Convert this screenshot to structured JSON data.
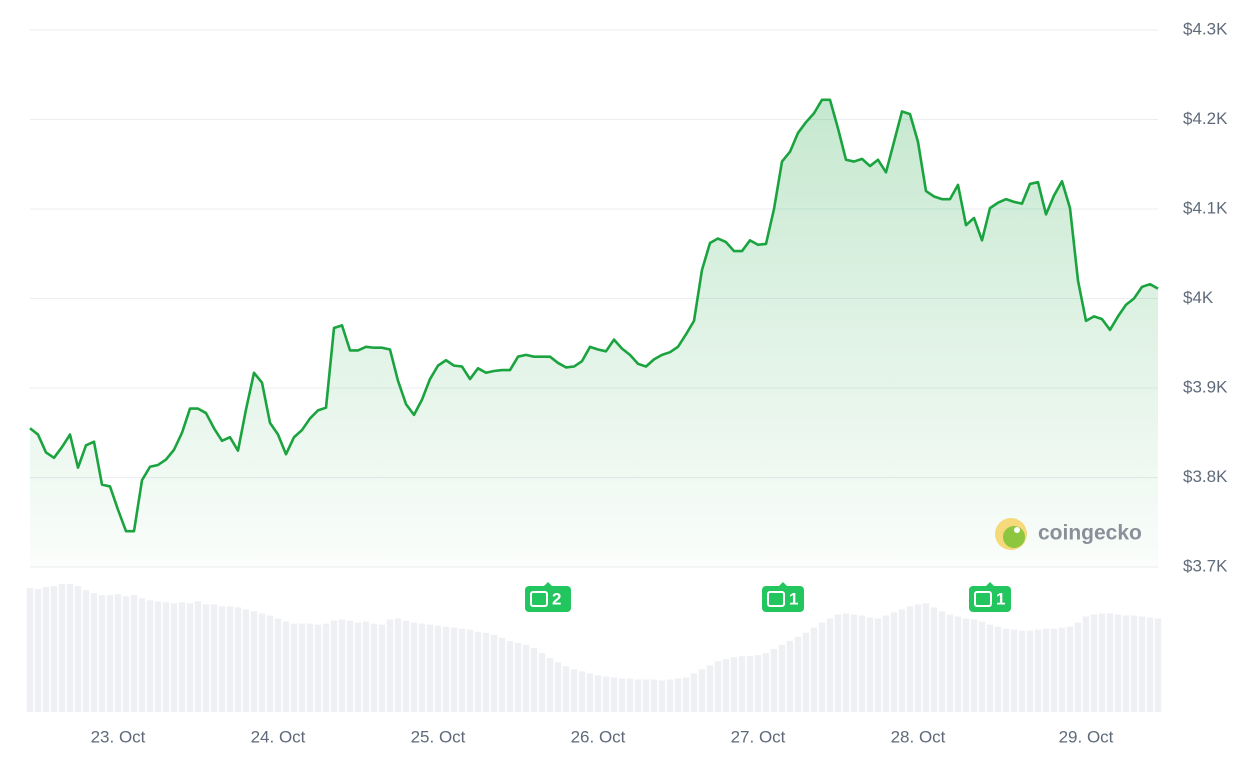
{
  "chart_data": {
    "type": "line",
    "categories": [
      null,
      null,
      null,
      null,
      null,
      null,
      null,
      null,
      null,
      null,
      null,
      "23. Oct",
      null,
      null,
      null,
      null,
      null,
      null,
      null,
      null,
      null,
      null,
      null,
      null,
      null,
      null,
      null,
      null,
      null,
      null,
      null,
      "24. Oct",
      null,
      null,
      null,
      null,
      null,
      null,
      null,
      null,
      null,
      null,
      null,
      null,
      null,
      null,
      null,
      null,
      null,
      null,
      null,
      "25. Oct",
      null,
      null,
      null,
      null,
      null,
      null,
      null,
      null,
      null,
      null,
      null,
      null,
      null,
      null,
      null,
      null,
      null,
      null,
      null,
      "26. Oct",
      null,
      null,
      null,
      null,
      null,
      null,
      null,
      null,
      null,
      null,
      null,
      null,
      null,
      null,
      null,
      null,
      null,
      null,
      null,
      "27. Oct",
      null,
      null,
      null,
      null,
      null,
      null,
      null,
      null,
      null,
      null,
      null,
      null,
      null,
      null,
      null,
      null,
      null,
      null,
      null,
      "28. Oct",
      null,
      null,
      null,
      null,
      null,
      null,
      null,
      null,
      null,
      null,
      null,
      null,
      null,
      null,
      null,
      null,
      null,
      null,
      null,
      null,
      "29. Oct",
      null,
      null,
      null,
      null,
      null,
      null,
      null,
      null,
      null
    ],
    "values": [
      3855,
      3848,
      3828,
      3822,
      3834,
      3848,
      3811,
      3836,
      3840,
      3792,
      3790,
      3764,
      3740,
      3740,
      3797,
      3812,
      3814,
      3820,
      3831,
      3850,
      3877,
      3877,
      3872,
      3855,
      3841,
      3845,
      3830,
      3876,
      3917,
      3906,
      3861,
      3848,
      3826,
      3845,
      3853,
      3866,
      3875,
      3878,
      3967,
      3970,
      3942,
      3942,
      3946,
      3945,
      3945,
      3943,
      3908,
      3882,
      3870,
      3887,
      3910,
      3925,
      3931,
      3925,
      3924,
      3910,
      3922,
      3917,
      3919,
      3920,
      3920,
      3935,
      3937,
      3935,
      3935,
      3935,
      3928,
      3923,
      3924,
      3930,
      3946,
      3943,
      3941,
      3954,
      3944,
      3937,
      3927,
      3924,
      3932,
      3937,
      3940,
      3946,
      3960,
      3975,
      4032,
      4062,
      4067,
      4063,
      4053,
      4053,
      4065,
      4060,
      4061,
      4100,
      4153,
      4164,
      4185,
      4197,
      4207,
      4222,
      4222,
      4190,
      4155,
      4153,
      4156,
      4148,
      4155,
      4141,
      4175,
      4209,
      4206,
      4175,
      4120,
      4114,
      4111,
      4111,
      4127,
      4082,
      4090,
      4065,
      4101,
      4107,
      4111,
      4108,
      4106,
      4128,
      4130,
      4094,
      4115,
      4131,
      4101,
      4020,
      3975,
      3980,
      3977,
      3965,
      3980,
      3993,
      4000,
      4013,
      4016,
      4011
    ],
    "color": "#1aa33f",
    "volume_values": [
      122,
      121,
      123,
      124,
      126,
      126,
      124,
      120,
      117,
      115,
      115,
      116,
      114,
      115,
      112,
      110,
      109,
      108,
      107,
      108,
      107,
      109,
      106,
      106,
      104,
      104,
      103,
      101,
      99,
      97,
      95,
      92,
      89,
      87,
      87,
      87,
      86,
      87,
      90,
      91,
      90,
      88,
      89,
      87,
      86,
      91,
      92,
      90,
      88,
      87,
      86,
      85,
      84,
      83,
      82,
      81,
      79,
      78,
      76,
      73,
      70,
      68,
      66,
      63,
      58,
      53,
      49,
      45,
      42,
      40,
      38,
      36,
      35,
      34,
      33,
      33,
      32,
      32,
      32,
      31,
      32,
      33,
      34,
      38,
      42,
      46,
      50,
      52,
      54,
      55,
      55,
      56,
      58,
      62,
      66,
      70,
      74,
      78,
      83,
      88,
      92,
      96,
      97,
      96,
      95,
      93,
      92,
      95,
      98,
      101,
      104,
      106,
      107,
      103,
      99,
      96,
      94,
      92,
      91,
      89,
      86,
      84,
      82,
      81,
      80,
      80,
      81,
      82,
      82,
      83,
      84,
      88,
      94,
      96,
      97,
      97,
      96,
      95,
      95,
      94,
      93,
      92
    ],
    "volume_color": "#eef0f4",
    "ylim": [
      3700,
      4300
    ],
    "yticks": [
      {
        "value": 3700,
        "label": "$3.7K"
      },
      {
        "value": 3800,
        "label": "$3.8K"
      },
      {
        "value": 3900,
        "label": "$3.9K"
      },
      {
        "value": 4000,
        "label": "$4K"
      },
      {
        "value": 4100,
        "label": "$4.1K"
      },
      {
        "value": 4200,
        "label": "$4.2K"
      },
      {
        "value": 4300,
        "label": "$4.3K"
      }
    ],
    "grid": true,
    "news_badges": [
      "2",
      "1",
      "1"
    ],
    "watermark": "coingecko"
  }
}
